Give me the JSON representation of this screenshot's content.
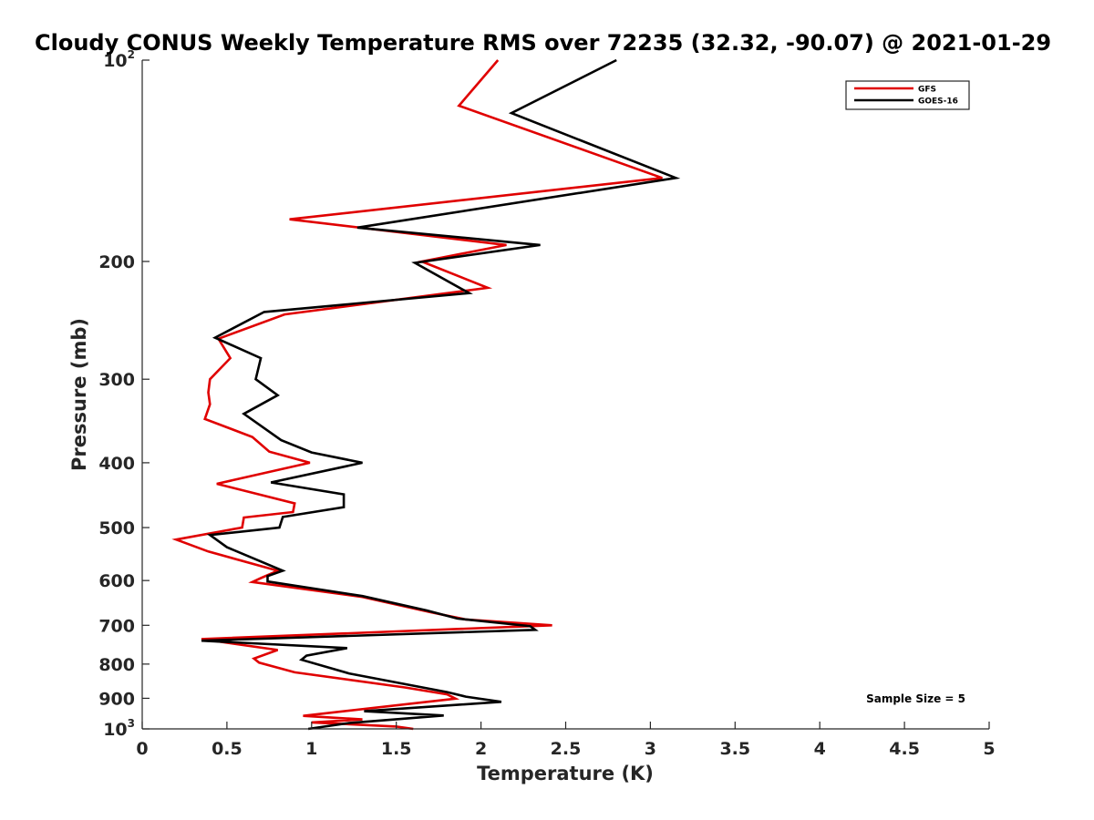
{
  "chart_data": {
    "type": "line",
    "title": "Cloudy CONUS Weekly Temperature RMS over 72235 (32.32, -90.07) @ 2021-01-29",
    "xlabel": "Temperature (K)",
    "ylabel": "Pressure (mb)",
    "xlim": [
      0,
      5
    ],
    "ylim": [
      1000,
      100
    ],
    "yscale": "log",
    "y_reversed": true,
    "grid": false,
    "legend_position": "top-right",
    "x_ticks": [
      "0",
      "0.5",
      "1",
      "1.5",
      "2",
      "2.5",
      "3",
      "3.5",
      "4",
      "4.5",
      "5"
    ],
    "y_ticks": [
      {
        "value": 100,
        "base": "10",
        "exp": "2"
      },
      {
        "value": 200,
        "base": "200",
        "exp": ""
      },
      {
        "value": 300,
        "base": "300",
        "exp": ""
      },
      {
        "value": 400,
        "base": "400",
        "exp": ""
      },
      {
        "value": 500,
        "base": "500",
        "exp": ""
      },
      {
        "value": 600,
        "base": "600",
        "exp": ""
      },
      {
        "value": 700,
        "base": "700",
        "exp": ""
      },
      {
        "value": 800,
        "base": "800",
        "exp": ""
      },
      {
        "value": 900,
        "base": "900",
        "exp": ""
      },
      {
        "value": 1000,
        "base": "10",
        "exp": "3"
      }
    ],
    "annotation": "Sample Size = 5",
    "series": [
      {
        "name": "GFS",
        "color": "#e00000",
        "points": [
          [
            2.1,
            100
          ],
          [
            1.87,
            117
          ],
          [
            3.07,
            150
          ],
          [
            0.87,
            173
          ],
          [
            2.15,
            189
          ],
          [
            1.65,
            200
          ],
          [
            2.04,
            219
          ],
          [
            0.84,
            240
          ],
          [
            0.45,
            261
          ],
          [
            0.52,
            279
          ],
          [
            0.4,
            300
          ],
          [
            0.39,
            314
          ],
          [
            0.4,
            327
          ],
          [
            0.37,
            344
          ],
          [
            0.65,
            366
          ],
          [
            0.75,
            385
          ],
          [
            0.99,
            400
          ],
          [
            0.44,
            430
          ],
          [
            0.9,
            460
          ],
          [
            0.89,
            474
          ],
          [
            0.6,
            483
          ],
          [
            0.59,
            500
          ],
          [
            0.2,
            521
          ],
          [
            0.39,
            543
          ],
          [
            0.8,
            580
          ],
          [
            0.7,
            595
          ],
          [
            0.65,
            603
          ],
          [
            1.3,
            635
          ],
          [
            1.7,
            669
          ],
          [
            1.91,
            686
          ],
          [
            2.42,
            700
          ],
          [
            0.35,
            734
          ],
          [
            0.8,
            762
          ],
          [
            0.66,
            785
          ],
          [
            0.69,
            796
          ],
          [
            0.9,
            823
          ],
          [
            1.55,
            867
          ],
          [
            1.8,
            888
          ],
          [
            1.85,
            901
          ],
          [
            0.95,
            956
          ],
          [
            1.3,
            968
          ],
          [
            1.0,
            978
          ],
          [
            1.5,
            992
          ],
          [
            1.6,
            1000
          ]
        ]
      },
      {
        "name": "GOES-16",
        "color": "#000000",
        "points": [
          [
            2.8,
            100
          ],
          [
            2.18,
            120
          ],
          [
            3.15,
            150
          ],
          [
            1.27,
            178
          ],
          [
            2.35,
            189
          ],
          [
            1.61,
            201
          ],
          [
            1.93,
            223
          ],
          [
            0.72,
            238
          ],
          [
            0.43,
            260
          ],
          [
            0.7,
            279
          ],
          [
            0.67,
            300
          ],
          [
            0.8,
            317
          ],
          [
            0.6,
            338
          ],
          [
            0.82,
            370
          ],
          [
            1.0,
            386
          ],
          [
            1.3,
            400
          ],
          [
            0.76,
            428
          ],
          [
            1.19,
            446
          ],
          [
            1.19,
            466
          ],
          [
            0.83,
            482
          ],
          [
            0.81,
            500
          ],
          [
            0.4,
            513
          ],
          [
            0.5,
            535
          ],
          [
            0.83,
            580
          ],
          [
            0.74,
            591
          ],
          [
            0.74,
            602
          ],
          [
            1.3,
            633
          ],
          [
            1.68,
            665
          ],
          [
            1.86,
            684
          ],
          [
            2.29,
            702
          ],
          [
            2.32,
            711
          ],
          [
            0.35,
            738
          ],
          [
            1.21,
            757
          ],
          [
            0.97,
            777
          ],
          [
            0.94,
            788
          ],
          [
            1.22,
            826
          ],
          [
            1.8,
            881
          ],
          [
            1.91,
            895
          ],
          [
            2.12,
            911
          ],
          [
            1.31,
            941
          ],
          [
            1.78,
            955
          ],
          [
            1.4,
            972
          ],
          [
            1.22,
            980
          ],
          [
            0.98,
            1000
          ]
        ]
      }
    ]
  }
}
